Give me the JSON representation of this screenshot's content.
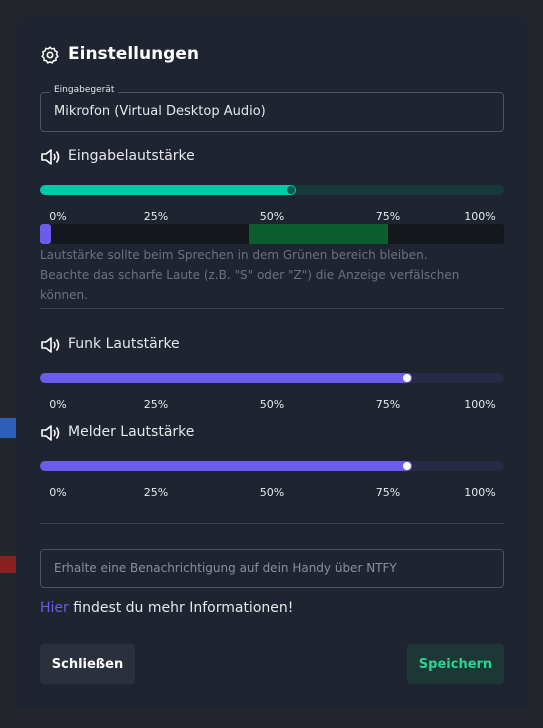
{
  "title": "Einstellungen",
  "input_device": {
    "label": "Eingabegerät",
    "value": "Mikrofon (Virtual Desktop Audio)"
  },
  "sliders": [
    {
      "label": "Eingabelautstärke",
      "value": 54,
      "ticks": [
        {
          "value": 0,
          "label": "0%"
        },
        {
          "value": 25,
          "label": "25%"
        },
        {
          "value": 50,
          "label": "50%"
        },
        {
          "value": 75,
          "label": "75%"
        },
        {
          "value": 100,
          "label": "100%"
        }
      ]
    },
    {
      "label": "Funk Lautstärke",
      "value": 79,
      "ticks": [
        {
          "value": 0,
          "label": "0%"
        },
        {
          "value": 25,
          "label": "25%"
        },
        {
          "value": 50,
          "label": "50%"
        },
        {
          "value": 75,
          "label": "75%"
        },
        {
          "value": 100,
          "label": "100%"
        }
      ]
    },
    {
      "label": "Melder Lautstärke",
      "value": 79,
      "ticks": [
        {
          "value": 0,
          "label": "0%"
        },
        {
          "value": 25,
          "label": "25%"
        },
        {
          "value": 50,
          "label": "50%"
        },
        {
          "value": 75,
          "label": "75%"
        },
        {
          "value": 100,
          "label": "100%"
        }
      ]
    }
  ],
  "level_meter": {
    "level": 2,
    "green_range": [
      45,
      75
    ]
  },
  "hint": "Lautstärke sollte beim Sprechen in dem Grünen bereich bleiben. Beachte das scharfe Laute (z.B. \"S\" oder \"Z\") die Anzeige verfälschen können.",
  "ntfy": {
    "placeholder": "Erhalte eine Benachrichtigung auf dein Handy über NTFY"
  },
  "link": {
    "link_text": "Hier",
    "text": "findest du mehr Informationen!"
  },
  "buttons": {
    "close": "Schließen",
    "save": "Speichern"
  }
}
